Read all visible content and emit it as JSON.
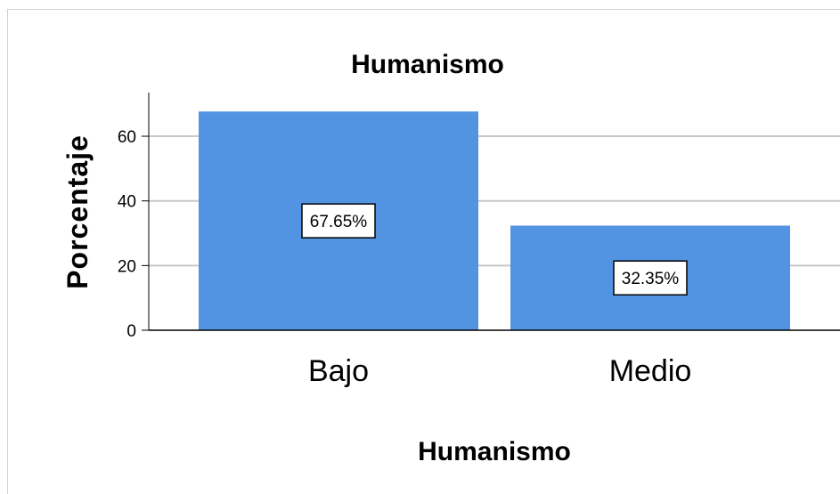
{
  "chart_data": {
    "type": "bar",
    "title": "Humanismo",
    "xlabel": "Humanismo",
    "ylabel": "Porcentaje",
    "categories": [
      "Bajo",
      "Medio"
    ],
    "values": [
      67.65,
      32.35
    ],
    "data_labels": [
      "67.65%",
      "32.35%"
    ],
    "yticks": [
      "0",
      "20",
      "40",
      "60"
    ],
    "ylim": [
      0,
      73.5
    ],
    "grid": true,
    "bar_color": "#5294e2"
  }
}
